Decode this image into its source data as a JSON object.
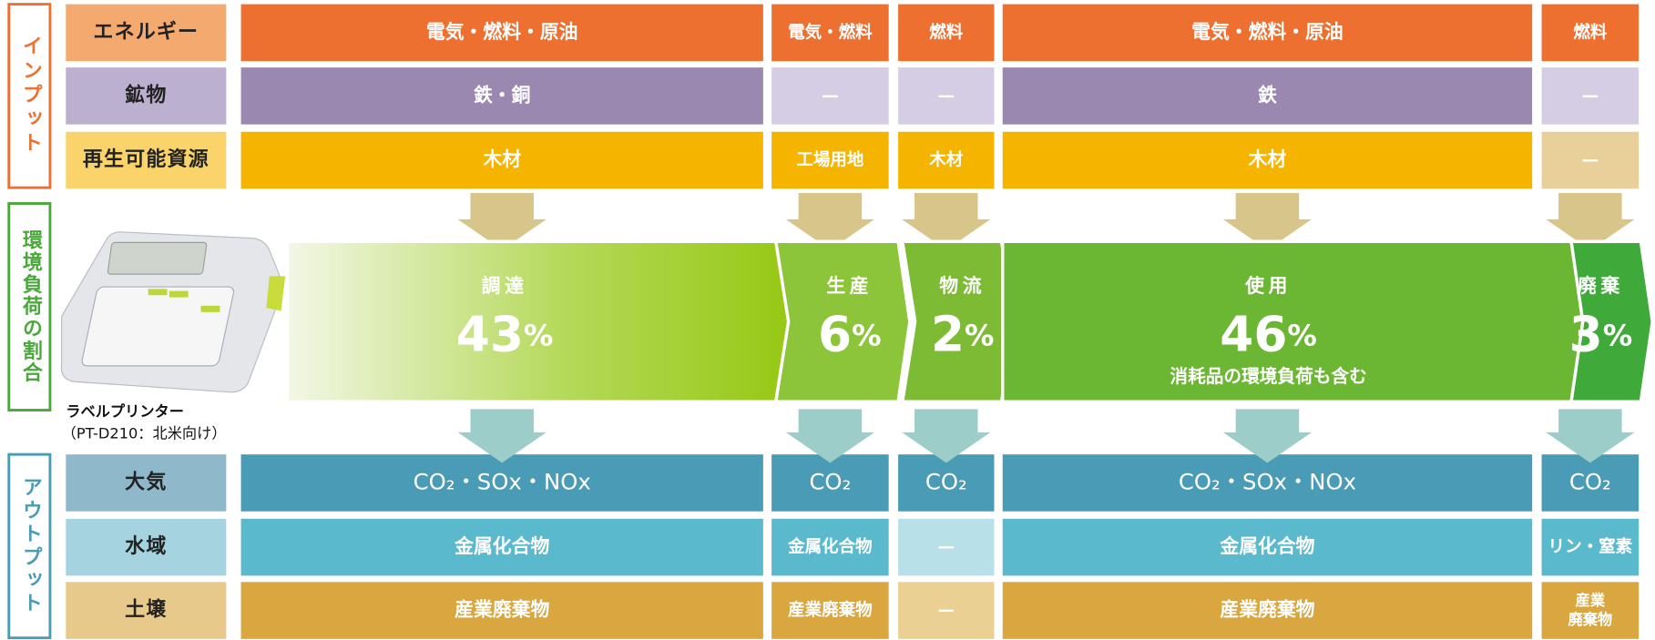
{
  "side_labels": {
    "input": "インプット",
    "impact": "環境負荷の割合",
    "output": "アウトプット"
  },
  "product": {
    "name": "ラベルプリンター",
    "model": "（PT-D210：北米向け）"
  },
  "stages": [
    {
      "name": "調達",
      "percent": "43",
      "unit": "%",
      "color": "#96c814"
    },
    {
      "name": "生産",
      "percent": "6",
      "unit": "%",
      "color": "#8cc43a"
    },
    {
      "name": "物流",
      "percent": "2",
      "unit": "%",
      "color": "#7dbb35"
    },
    {
      "name": "使用",
      "percent": "46",
      "unit": "%",
      "note": "消耗品の環境負荷も含む",
      "color": "#6bb632"
    },
    {
      "name": "廃棄",
      "percent": "3",
      "unit": "%",
      "color": "#3faa3a"
    }
  ],
  "input_rows": [
    {
      "label": "エネルギー",
      "header_color": "#f4a96f",
      "cells": [
        "電気・燃料・原油",
        "電気・燃料",
        "燃料",
        "電気・燃料・原油",
        "燃料"
      ],
      "cell_colors": [
        "#ee7030",
        "#ee7030",
        "#ee7030",
        "#ee7030",
        "#ee7030"
      ]
    },
    {
      "label": "鉱物",
      "header_color": "#bcb0d0",
      "cells": [
        "鉄・銅",
        "—",
        "—",
        "鉄",
        "—"
      ],
      "cell_colors": [
        "#9b88b1",
        "#d5cde3",
        "#d5cde3",
        "#9b88b1",
        "#d5cde3"
      ]
    },
    {
      "label": "再生可能資源",
      "header_color": "#fad46b",
      "cells": [
        "木材",
        "工場用地",
        "木材",
        "木材",
        "—"
      ],
      "cell_colors": [
        "#f5b400",
        "#f5b400",
        "#f5b400",
        "#f5b400",
        "#e9d09a"
      ]
    }
  ],
  "output_rows": [
    {
      "label": "大気",
      "header_color": "#8fb8cb",
      "cells": [
        "CO₂・SOx・NOx",
        "CO₂",
        "CO₂",
        "CO₂・SOx・NOx",
        "CO₂"
      ],
      "cell_colors": [
        "#4a9bb5",
        "#4a9bb5",
        "#4a9bb5",
        "#4a9bb5",
        "#4a9bb5"
      ]
    },
    {
      "label": "水域",
      "header_color": "#a5d4e0",
      "cells": [
        "金属化合物",
        "金属化合物",
        "—",
        "金属化合物",
        "リン・窒素"
      ],
      "cell_colors": [
        "#5ab9cc",
        "#5ab9cc",
        "#b8e0e8",
        "#5ab9cc",
        "#5ab9cc"
      ]
    },
    {
      "label": "土壌",
      "header_color": "#e8c98c",
      "cells": [
        "産業廃棄物",
        "産業廃棄物",
        "—",
        "産業廃棄物",
        "産業\n廃棄物"
      ],
      "cell_colors": [
        "#d9a640",
        "#d9a640",
        "#ead092",
        "#d9a640",
        "#d9a640"
      ]
    }
  ]
}
